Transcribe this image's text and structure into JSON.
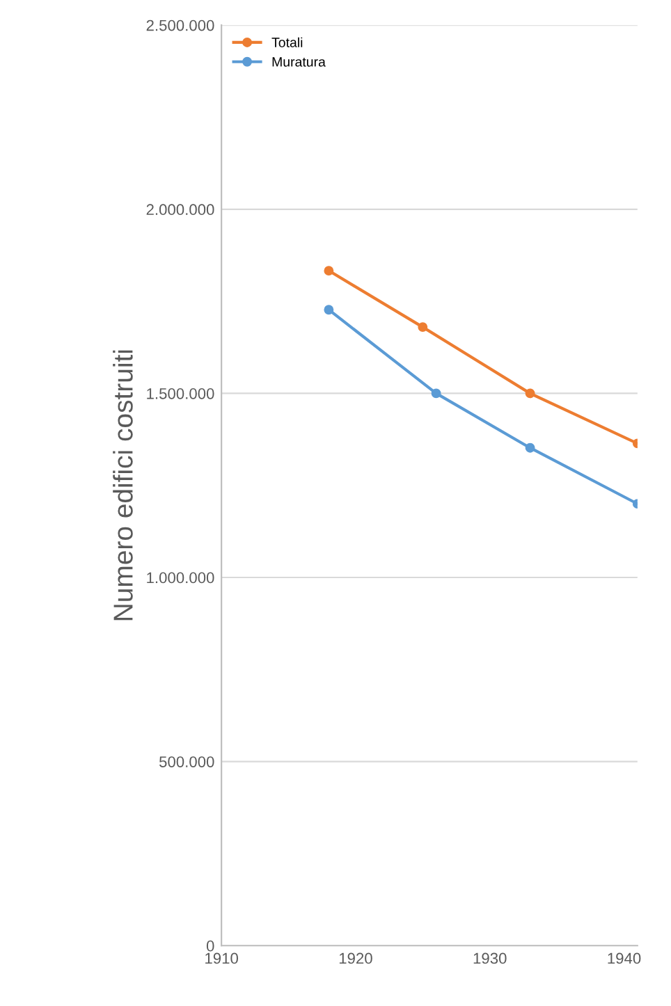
{
  "chart_data": {
    "type": "line",
    "ylabel": "Numero edifici costruiti",
    "x": [
      1918,
      1925,
      1933,
      1941
    ],
    "series": [
      {
        "name": "Totali",
        "color": "#ed7d31",
        "values": [
          1833000,
          1680000,
          1500000,
          1364000
        ]
      },
      {
        "name": "Muratura",
        "color": "#5b9bd5",
        "x": [
          1918,
          1926,
          1933,
          1941
        ],
        "values": [
          1727000,
          1500000,
          1352000,
          1200000
        ]
      }
    ],
    "xlim": [
      1910,
      1941
    ],
    "xticks": [
      1910,
      1920,
      1930,
      1940
    ],
    "ylim": [
      0,
      2500000
    ],
    "yticks": [
      {
        "value": 0,
        "label": "0"
      },
      {
        "value": 500000,
        "label": "500.000"
      },
      {
        "value": 1000000,
        "label": "1.000.000"
      },
      {
        "value": 1500000,
        "label": "1.500.000"
      },
      {
        "value": 2000000,
        "label": "2.000.000"
      },
      {
        "value": 2500000,
        "label": "2.500.000"
      }
    ],
    "grid": "y",
    "legend": "top left",
    "marker": "circle",
    "line_style": "solid"
  }
}
